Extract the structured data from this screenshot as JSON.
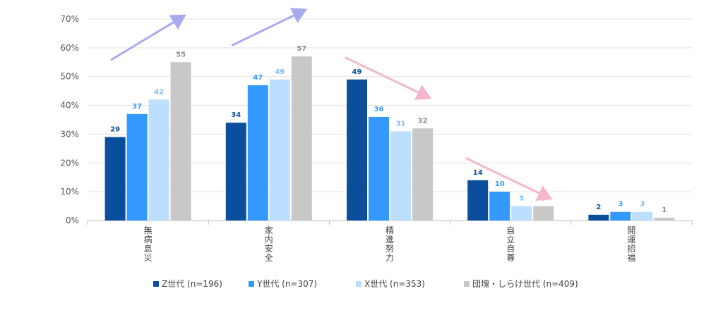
{
  "chart_data": {
    "type": "bar",
    "title": "",
    "xlabel": "",
    "ylabel": "",
    "ylim": [
      0,
      70
    ],
    "y_tick_values": [
      0,
      10,
      20,
      30,
      40,
      50,
      60,
      70
    ],
    "y_tick_labels": [
      "0%",
      "10%",
      "20%",
      "30%",
      "40%",
      "50%",
      "60%",
      "70%"
    ],
    "categories": [
      "無病息災",
      "家内安全",
      "精進努力",
      "自立自尊",
      "開運招福"
    ],
    "series": [
      {
        "name": "Z世代 (n=196)",
        "color": "#0B4F9C",
        "label_color": "#0B4F9C",
        "values": [
          29,
          34,
          49,
          14,
          2
        ]
      },
      {
        "name": "Y世代 (n=307)",
        "color": "#3399FF",
        "label_color": "#3399FF",
        "values": [
          37,
          47,
          36,
          10,
          3
        ]
      },
      {
        "name": "X世代 (n=353)",
        "color": "#BDDFFF",
        "label_color": "#7FBDF5",
        "values": [
          42,
          49,
          31,
          5,
          3
        ]
      },
      {
        "name": "団塊・しらけ世代 (n=409)",
        "color": "#C8C8C8",
        "label_color": "#8C8C8C",
        "values": [
          55,
          57,
          32,
          5,
          1
        ]
      }
    ],
    "grid": true,
    "legend_position": "bottom",
    "annotations": [
      {
        "type": "trend-arrow",
        "direction": "up",
        "category": "無病息災",
        "color": "#A9A9F0"
      },
      {
        "type": "trend-arrow",
        "direction": "up",
        "category": "家内安全",
        "color": "#A9A9F0"
      },
      {
        "type": "trend-arrow",
        "direction": "down",
        "category": "精進努力",
        "color": "#F4B6CC"
      },
      {
        "type": "trend-arrow",
        "direction": "down",
        "category": "自立自尊",
        "color": "#F4B6CC"
      }
    ]
  }
}
